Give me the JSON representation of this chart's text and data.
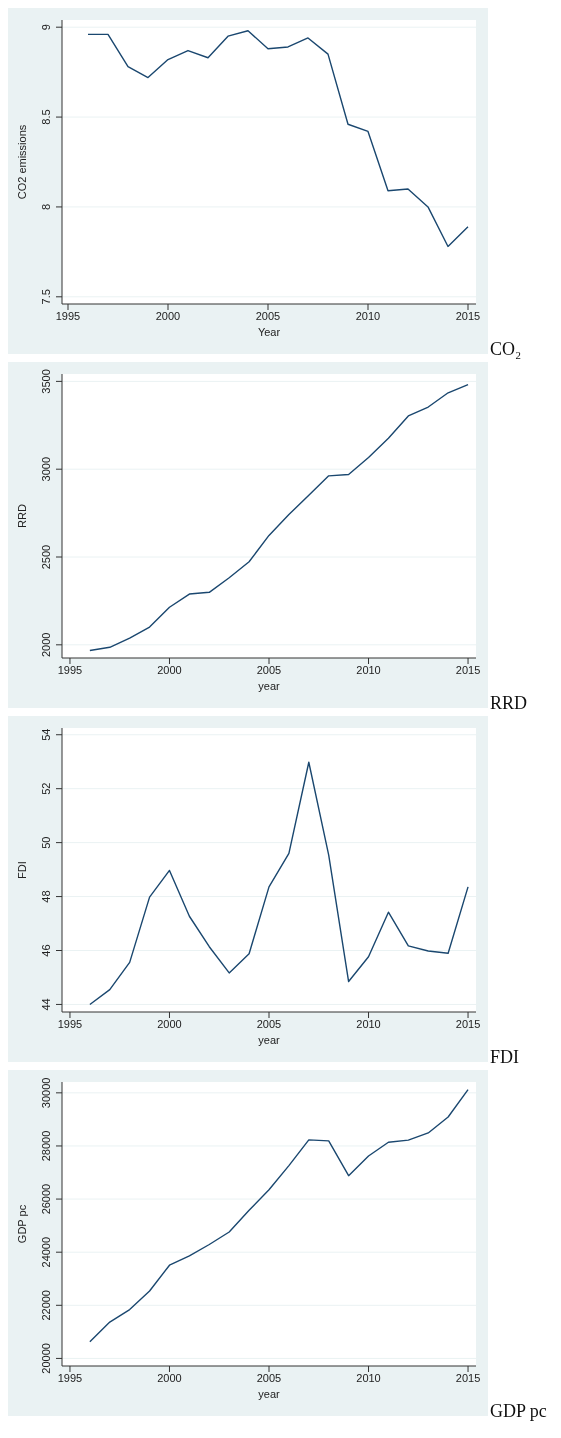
{
  "chart_data": [
    {
      "type": "line",
      "xlabel": "Year",
      "ylabel": "CO2 emissions",
      "annotations": [
        "CO₂"
      ],
      "x": [
        1996,
        1997,
        1998,
        1999,
        2000,
        2001,
        2002,
        2003,
        2004,
        2005,
        2006,
        2007,
        2008,
        2009,
        2010,
        2011,
        2012,
        2013,
        2014,
        2015
      ],
      "series": [
        {
          "color": "#1a476f",
          "values": [
            8.96,
            8.96,
            8.78,
            8.72,
            8.82,
            8.87,
            8.83,
            8.95,
            8.98,
            8.88,
            8.89,
            8.94,
            8.85,
            8.46,
            8.42,
            8.09,
            8.1,
            8.0,
            7.78,
            7.89
          ]
        }
      ],
      "xlim": [
        1994.7,
        2015.4
      ],
      "xticks": [
        1995,
        2000,
        2005,
        2010,
        2015
      ],
      "ylim": [
        7.46,
        9.04
      ],
      "yticks": [
        7.5,
        8,
        8.5,
        9
      ],
      "grid": "y",
      "legend": false,
      "marker": "none",
      "line_style": "solid"
    },
    {
      "type": "line",
      "xlabel": "year",
      "ylabel": "RRD",
      "annotations": [
        "RRD"
      ],
      "x": [
        1996,
        1997,
        1998,
        1999,
        2000,
        2001,
        2002,
        2003,
        2004,
        2005,
        2006,
        2007,
        2008,
        2009,
        2010,
        2011,
        2012,
        2013,
        2014,
        2015
      ],
      "series": [
        {
          "color": "#1a476f",
          "values": [
            1968,
            1986,
            2038,
            2101,
            2214,
            2289,
            2299,
            2382,
            2473,
            2623,
            2742,
            2851,
            2962,
            2970,
            3067,
            3176,
            3303,
            3354,
            3435,
            3482
          ]
        }
      ],
      "xlim": [
        1994.6,
        2015.4
      ],
      "xticks": [
        1995,
        2000,
        2005,
        2010,
        2015
      ],
      "ylim": [
        1925,
        3542
      ],
      "yticks": [
        2000,
        2500,
        3000,
        3500
      ],
      "grid": "y",
      "legend": false,
      "marker": "none",
      "line_style": "solid"
    },
    {
      "type": "line",
      "xlabel": "year",
      "ylabel": "FDI",
      "annotations": [
        "FDI"
      ],
      "x": [
        1996,
        1997,
        1998,
        1999,
        2000,
        2001,
        2002,
        2003,
        2004,
        2005,
        2006,
        2007,
        2008,
        2009,
        2010,
        2011,
        2012,
        2013,
        2014,
        2015
      ],
      "series": [
        {
          "color": "#1a476f",
          "values": [
            44.0,
            44.55,
            45.56,
            47.98,
            48.97,
            47.27,
            46.14,
            45.17,
            45.88,
            48.36,
            49.6,
            52.98,
            49.54,
            44.85,
            45.77,
            47.42,
            46.17,
            45.98,
            45.9,
            48.36
          ]
        }
      ],
      "xlim": [
        1994.6,
        2015.4
      ],
      "xticks": [
        1995,
        2000,
        2005,
        2010,
        2015
      ],
      "ylim": [
        43.72,
        54.25
      ],
      "yticks": [
        44,
        46,
        48,
        50,
        52,
        54
      ],
      "grid": "y",
      "legend": false,
      "marker": "none",
      "line_style": "solid"
    },
    {
      "type": "line",
      "xlabel": "year",
      "ylabel": "GDP pc",
      "annotations": [
        "GDP pc"
      ],
      "x": [
        1996,
        1997,
        1998,
        1999,
        2000,
        2001,
        2002,
        2003,
        2004,
        2005,
        2006,
        2007,
        2008,
        2009,
        2010,
        2011,
        2012,
        2013,
        2014,
        2015
      ],
      "series": [
        {
          "color": "#1a476f",
          "values": [
            20630,
            21370,
            21840,
            22540,
            23510,
            23860,
            24290,
            24760,
            25580,
            26350,
            27260,
            28230,
            28190,
            26880,
            27620,
            28140,
            28220,
            28490,
            29090,
            30120
          ]
        }
      ],
      "xlim": [
        1994.6,
        2015.4
      ],
      "xticks": [
        1995,
        2000,
        2005,
        2010,
        2015
      ],
      "ylim": [
        19715,
        30408
      ],
      "yticks": [
        20000,
        22000,
        24000,
        26000,
        28000,
        30000
      ],
      "grid": "y",
      "legend": false,
      "marker": "none",
      "line_style": "solid"
    }
  ]
}
